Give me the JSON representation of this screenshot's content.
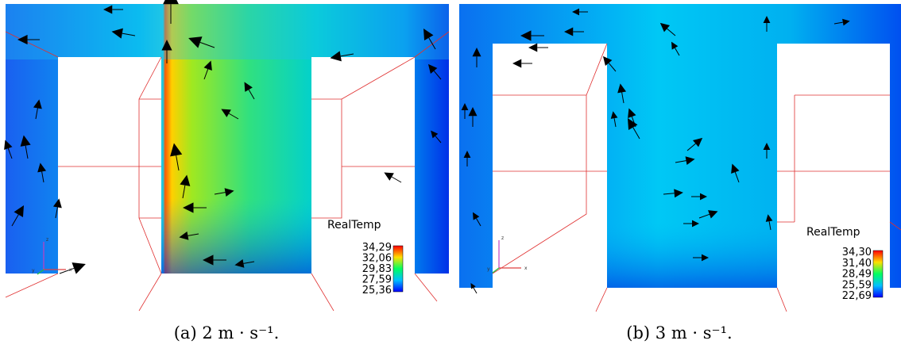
{
  "panels": [
    {
      "legend": {
        "title": "RealTemp",
        "labels": [
          "34,29",
          "32,06",
          "29,83",
          "27,59",
          "25,36"
        ]
      },
      "triad": [
        "z",
        "y",
        "x"
      ],
      "caption": "(a) 2 m · s⁻¹."
    },
    {
      "legend": {
        "title": "RealTemp",
        "labels": [
          "34,30",
          "31,40",
          "28,49",
          "25,59",
          "22,69"
        ]
      },
      "triad": [
        "z",
        "y",
        "x"
      ],
      "caption": "(b) 3 m · s⁻¹."
    }
  ]
}
